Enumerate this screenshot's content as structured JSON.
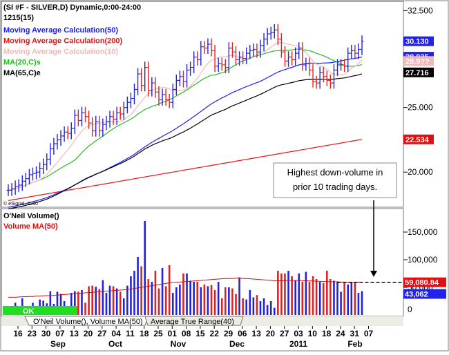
{
  "chart_data": [
    {
      "type": "candlestick",
      "title": "(SI #F - SILVER,D) Dynamic,0:00-24:00",
      "subtitle": "1215(15)",
      "watermark": "© eSignal, 2010",
      "ylim": [
        17.5,
        33
      ],
      "yticks": [
        20.0,
        25.0,
        32.5
      ],
      "ytick_labels": [
        "20.000",
        "25.000",
        "32.500"
      ],
      "legend": [
        {
          "label": "Moving Average Calculation(50)",
          "color": "#1a1aff"
        },
        {
          "label": "Moving Average Calculation(200)",
          "color": "#ee1111"
        },
        {
          "label": "Moving Average Calculation(10)",
          "color": "#f4b8b8"
        },
        {
          "label": "MA(20,C)s",
          "color": "#22bb22"
        },
        {
          "label": "MA(65,C)e",
          "color": "#000000"
        }
      ],
      "x": [
        "Sep 14",
        "Sep 15",
        "Sep 16",
        "Sep 17",
        "Sep 20",
        "Sep 21",
        "Sep 22",
        "Sep 23",
        "Sep 24",
        "Sep 27",
        "Sep 28",
        "Sep 29",
        "Sep 30",
        "Oct 1",
        "Oct 4",
        "Oct 5",
        "Oct 6",
        "Oct 7",
        "Oct 8",
        "Oct 11",
        "Oct 12",
        "Oct 13",
        "Oct 14",
        "Oct 15",
        "Oct 18",
        "Oct 19",
        "Oct 20",
        "Oct 21",
        "Oct 22",
        "Oct 25",
        "Oct 26",
        "Oct 27",
        "Oct 28",
        "Oct 29",
        "Nov 1",
        "Nov 2",
        "Nov 3",
        "Nov 4",
        "Nov 5",
        "Nov 8",
        "Nov 9",
        "Nov 10",
        "Nov 11",
        "Nov 12",
        "Nov 15",
        "Nov 16",
        "Nov 17",
        "Nov 18",
        "Nov 19",
        "Nov 22",
        "Nov 23",
        "Nov 24",
        "Nov 26",
        "Nov 29",
        "Nov 30",
        "Dec 1",
        "Dec 2",
        "Dec 3",
        "Dec 6",
        "Dec 7",
        "Dec 8",
        "Dec 9",
        "Dec 10",
        "Dec 13",
        "Dec 14",
        "Dec 15",
        "Dec 16",
        "Dec 17",
        "Dec 20",
        "Dec 21",
        "Dec 22",
        "Dec 23",
        "Dec 27",
        "Dec 28",
        "Dec 29",
        "Dec 30",
        "Dec 31",
        "Jan 3",
        "Jan 4",
        "Jan 5",
        "Jan 6",
        "Jan 7",
        "Jan 10",
        "Jan 11",
        "Jan 12",
        "Jan 13",
        "Jan 14",
        "Jan 18",
        "Jan 19",
        "Jan 20",
        "Jan 21",
        "Jan 24",
        "Jan 25",
        "Jan 26",
        "Jan 27",
        "Jan 28",
        "Jan 31",
        "Feb 1",
        "Feb 2",
        "Feb 3",
        "Feb 4",
        "Feb 7"
      ],
      "close": [
        18.6,
        18.7,
        18.9,
        19.0,
        19.3,
        19.5,
        19.8,
        19.9,
        20.0,
        20.3,
        20.6,
        21.0,
        21.8,
        22.2,
        22.5,
        22.8,
        23.1,
        23.0,
        23.4,
        24.4,
        24.0,
        24.6,
        24.3,
        23.8,
        23.2,
        23.9,
        23.2,
        23.7,
        23.9,
        24.3,
        24.1,
        24.6,
        24.5,
        25.0,
        25.4,
        25.7,
        26.4,
        27.6,
        26.7,
        28.1,
        26.3,
        26.9,
        26.2,
        25.6,
        26.0,
        25.6,
        25.4,
        26.4,
        27.1,
        27.4,
        27.0,
        27.9,
        28.1,
        28.9,
        28.7,
        29.7,
        29.6,
        29.9,
        29.4,
        28.2,
        28.4,
        28.3,
        28.1,
        29.6,
        29.3,
        28.7,
        28.9,
        28.8,
        29.2,
        29.4,
        29.5,
        29.3,
        29.8,
        30.3,
        30.7,
        30.8,
        31.0,
        30.3,
        29.3,
        28.6,
        28.9,
        28.7,
        29.2,
        29.6,
        28.3,
        28.4,
        27.9,
        27.0,
        26.9,
        27.7,
        27.4,
        27.1,
        26.9,
        27.9,
        28.3,
        28.3,
        28.2,
        29.2,
        29.4,
        29.2,
        29.5,
        30.13
      ],
      "volume_panel": {
        "title": "O'Neil Volume()",
        "subtitle": "Volume MA(50)",
        "ylim": [
          0,
          190000
        ],
        "yticks": [
          50000,
          100000,
          150000
        ],
        "ytick_labels": [
          "50,000",
          "100,000",
          "150,000"
        ],
        "up_color": "#2222dd",
        "down_color": "#dd2222",
        "ma_color": "#cc1111",
        "price_tags": [
          {
            "label": "59,080.84",
            "color": "#dd1111"
          },
          {
            "label": "43,062",
            "color": "#2222ee"
          }
        ],
        "volume": [
          12000,
          15000,
          22000,
          10000,
          30000,
          16000,
          13000,
          22000,
          15000,
          28000,
          26000,
          21000,
          43000,
          20000,
          42000,
          38000,
          25000,
          15000,
          40000,
          43000,
          42000,
          45000,
          22000,
          52000,
          53000,
          51000,
          47000,
          63000,
          40000,
          53000,
          52000,
          48000,
          42000,
          30000,
          53000,
          70000,
          80000,
          105000,
          88000,
          170000,
          65000,
          60000,
          80000,
          48000,
          85000,
          52000,
          90000,
          40000,
          50000,
          55000,
          75000,
          75000,
          62000,
          60000,
          60000,
          50000,
          55000,
          52000,
          54000,
          45000,
          60000,
          30000,
          50000,
          50000,
          48000,
          38000,
          68000,
          30000,
          28000,
          45000,
          32000,
          36000,
          25000,
          30000,
          18000,
          25000,
          13000,
          80000,
          75000,
          75000,
          80000,
          70000,
          62000,
          75000,
          60000,
          78000,
          60000,
          70000,
          65000,
          60000,
          58000,
          80000,
          65000,
          62000,
          60000,
          42000,
          58000,
          55000,
          60000,
          58000,
          40000,
          43062
        ],
        "volume_ma": [
          32000,
          32000,
          32000,
          32500,
          33000,
          33000,
          33500,
          33500,
          34000,
          34000,
          34500,
          35000,
          35000,
          35500,
          36000,
          36500,
          37000,
          37500,
          38000,
          38500,
          39000,
          39500,
          40000,
          40500,
          41000,
          41500,
          42000,
          42500,
          43000,
          43500,
          44000,
          44500,
          45000,
          45500,
          46000,
          47000,
          48000,
          49000,
          50000,
          51000,
          52000,
          53000,
          54000,
          55000,
          56000,
          57000,
          58000,
          58500,
          59000,
          59500,
          60000,
          60500,
          61000,
          61500,
          62000,
          62500,
          63000,
          63500,
          64000,
          64500,
          65000,
          65500,
          66000,
          66000,
          66000,
          66500,
          66500,
          66000,
          66000,
          65500,
          65000,
          64500,
          64000,
          63500,
          63000,
          62500,
          62000,
          62000,
          62000,
          62000,
          62500,
          62500,
          62500,
          62500,
          62000,
          62000,
          61500,
          61500,
          61000,
          61000,
          60500,
          60500,
          60000,
          60000,
          60000,
          59500,
          59500,
          59200,
          59100,
          59100,
          59080,
          59080.84
        ]
      },
      "price_tags": [
        {
          "label": "30.130",
          "color": "#2222ee"
        },
        {
          "label": "28.935",
          "color": "#2222ee"
        },
        {
          "label": "28.9??",
          "color": "#f4b8b8"
        },
        {
          "label": "27.716",
          "color": "#000000"
        },
        {
          "label": "22.534",
          "color": "#dd1111"
        }
      ],
      "annotation": "Highest down-volume in prior 10 trading days.",
      "ok_label": "OK",
      "x_tick_labels": [
        "16",
        "23",
        "30",
        "07",
        "13",
        "20",
        "27",
        "04",
        "11",
        "18",
        "25",
        "01",
        "08",
        "15",
        "22",
        "29",
        "06",
        "13",
        "20",
        "27",
        "03",
        "10",
        "18",
        "24",
        "31",
        "07"
      ],
      "x_month_labels": [
        "Sep",
        "Oct",
        "Nov",
        "Dec",
        "2011",
        "Feb"
      ],
      "tabs": [
        "O'Neil Volume(), Volume MA(50)",
        "Average True Range(40)"
      ]
    }
  ]
}
